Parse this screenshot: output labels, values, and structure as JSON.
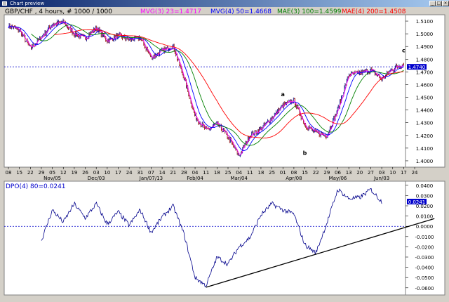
{
  "window": {
    "title": "Chart preview",
    "buttons": [
      "_",
      "□",
      "×"
    ]
  },
  "chart_data": [
    {
      "type": "line",
      "title": "GBP/CHF , 4 hours, # 1000 / 1000",
      "indicators": [
        {
          "label": "MVG(3) 23=1.4717",
          "color": "#ff00ff"
        },
        {
          "label": "MVG(4) 50=1.4668",
          "color": "#0000ff"
        },
        {
          "label": "MAE(3) 100=1.4599",
          "color": "#008000"
        },
        {
          "label": "MAE(4) 200=1.4508",
          "color": "#ff0000"
        }
      ],
      "ylim": [
        1.395,
        1.515
      ],
      "yticks": [
        "1.5100",
        "1.5000",
        "1.4900",
        "1.4800",
        "1.4700",
        "1.4600",
        "1.4500",
        "1.4400",
        "1.4300",
        "1.4200",
        "1.4100",
        "1.4000"
      ],
      "last_price_label": "1.4740",
      "last_price": 1.474,
      "xticks": [
        "08",
        "15",
        "22",
        "29",
        "05",
        "12",
        "19",
        "26",
        "03",
        "10",
        "17",
        "24",
        "31",
        "07",
        "14",
        "21",
        "28",
        "04",
        "11",
        "18",
        "25",
        "04",
        "11",
        "18",
        "25",
        "01",
        "08",
        "15",
        "22",
        "29",
        "06",
        "13",
        "20",
        "27",
        "03",
        "10",
        "17",
        "24"
      ],
      "month_labels": [
        {
          "text": "Nov/05",
          "tick": 4
        },
        {
          "text": "Dec/03",
          "tick": 8
        },
        {
          "text": "Jan/07/13",
          "tick": 13
        },
        {
          "text": "Feb/04",
          "tick": 17
        },
        {
          "text": "Mar/04",
          "tick": 21
        },
        {
          "text": "Apr/08",
          "tick": 26
        },
        {
          "text": "May/06",
          "tick": 30
        },
        {
          "text": "Jun/03",
          "tick": 34
        }
      ],
      "price_path": [
        [
          0,
          1.5065
        ],
        [
          1,
          1.503
        ],
        [
          2,
          1.4885
        ],
        [
          3,
          1.4975
        ],
        [
          4,
          1.5075
        ],
        [
          5,
          1.509
        ],
        [
          6,
          1.5
        ],
        [
          7,
          1.4965
        ],
        [
          8,
          1.505
        ],
        [
          9,
          1.4945
        ],
        [
          10,
          1.4985
        ],
        [
          11,
          1.4955
        ],
        [
          12,
          1.497
        ],
        [
          13,
          1.4815
        ],
        [
          14,
          1.4865
        ],
        [
          15,
          1.4905
        ],
        [
          16,
          1.465
        ],
        [
          17,
          1.435
        ],
        [
          18,
          1.424
        ],
        [
          19,
          1.429
        ],
        [
          20,
          1.419
        ],
        [
          21,
          1.404
        ],
        [
          22,
          1.42
        ],
        [
          23,
          1.425
        ],
        [
          24,
          1.434
        ],
        [
          25,
          1.4435
        ],
        [
          26,
          1.4475
        ],
        [
          27,
          1.4285
        ],
        [
          28,
          1.422
        ],
        [
          29,
          1.42
        ],
        [
          30,
          1.4405
        ],
        [
          31,
          1.468
        ],
        [
          32,
          1.469
        ],
        [
          33,
          1.4715
        ],
        [
          34,
          1.4645
        ],
        [
          35,
          1.4725
        ],
        [
          36,
          1.4765
        ]
      ],
      "annotations": [
        {
          "text": "a",
          "x": 25,
          "y": 1.4508
        },
        {
          "text": "b",
          "x": 27,
          "y": 1.4046
        },
        {
          "text": "c",
          "x": 36,
          "y": 1.4855
        }
      ]
    },
    {
      "type": "line",
      "title": "DPO(4) 80=0.0241",
      "ylim": [
        -0.067,
        0.044
      ],
      "yticks": [
        "0.0400",
        "0.0300",
        "0.0200",
        "0.0100",
        "0.0000",
        "-0.0100",
        "-0.0200",
        "-0.0300",
        "-0.0400",
        "-0.0500",
        "-0.0600"
      ],
      "last_value_label": "0.0241",
      "last_value": 0.0241,
      "values": [
        [
          3,
          -0.014
        ],
        [
          4,
          0.016
        ],
        [
          5,
          0.004
        ],
        [
          6,
          0.022
        ],
        [
          7,
          0.008
        ],
        [
          8,
          0.022
        ],
        [
          9,
          0.002
        ],
        [
          10,
          0.014
        ],
        [
          11,
          0.001
        ],
        [
          12,
          0.016
        ],
        [
          13,
          -0.006
        ],
        [
          14,
          0.009
        ],
        [
          15,
          0.02
        ],
        [
          16,
          -0.008
        ],
        [
          17,
          -0.05
        ],
        [
          18,
          -0.058
        ],
        [
          19,
          -0.03
        ],
        [
          20,
          -0.037
        ],
        [
          21,
          -0.02
        ],
        [
          22,
          -0.011
        ],
        [
          23,
          0.011
        ],
        [
          24,
          0.022
        ],
        [
          25,
          0.016
        ],
        [
          26,
          0.012
        ],
        [
          27,
          -0.018
        ],
        [
          28,
          -0.026
        ],
        [
          29,
          0.003
        ],
        [
          30,
          0.036
        ],
        [
          31,
          0.027
        ],
        [
          32,
          0.028
        ],
        [
          33,
          0.036
        ],
        [
          34,
          0.024
        ]
      ],
      "trendline": [
        [
          18,
          -0.0595
        ],
        [
          38.8,
          0.0075
        ]
      ]
    }
  ]
}
